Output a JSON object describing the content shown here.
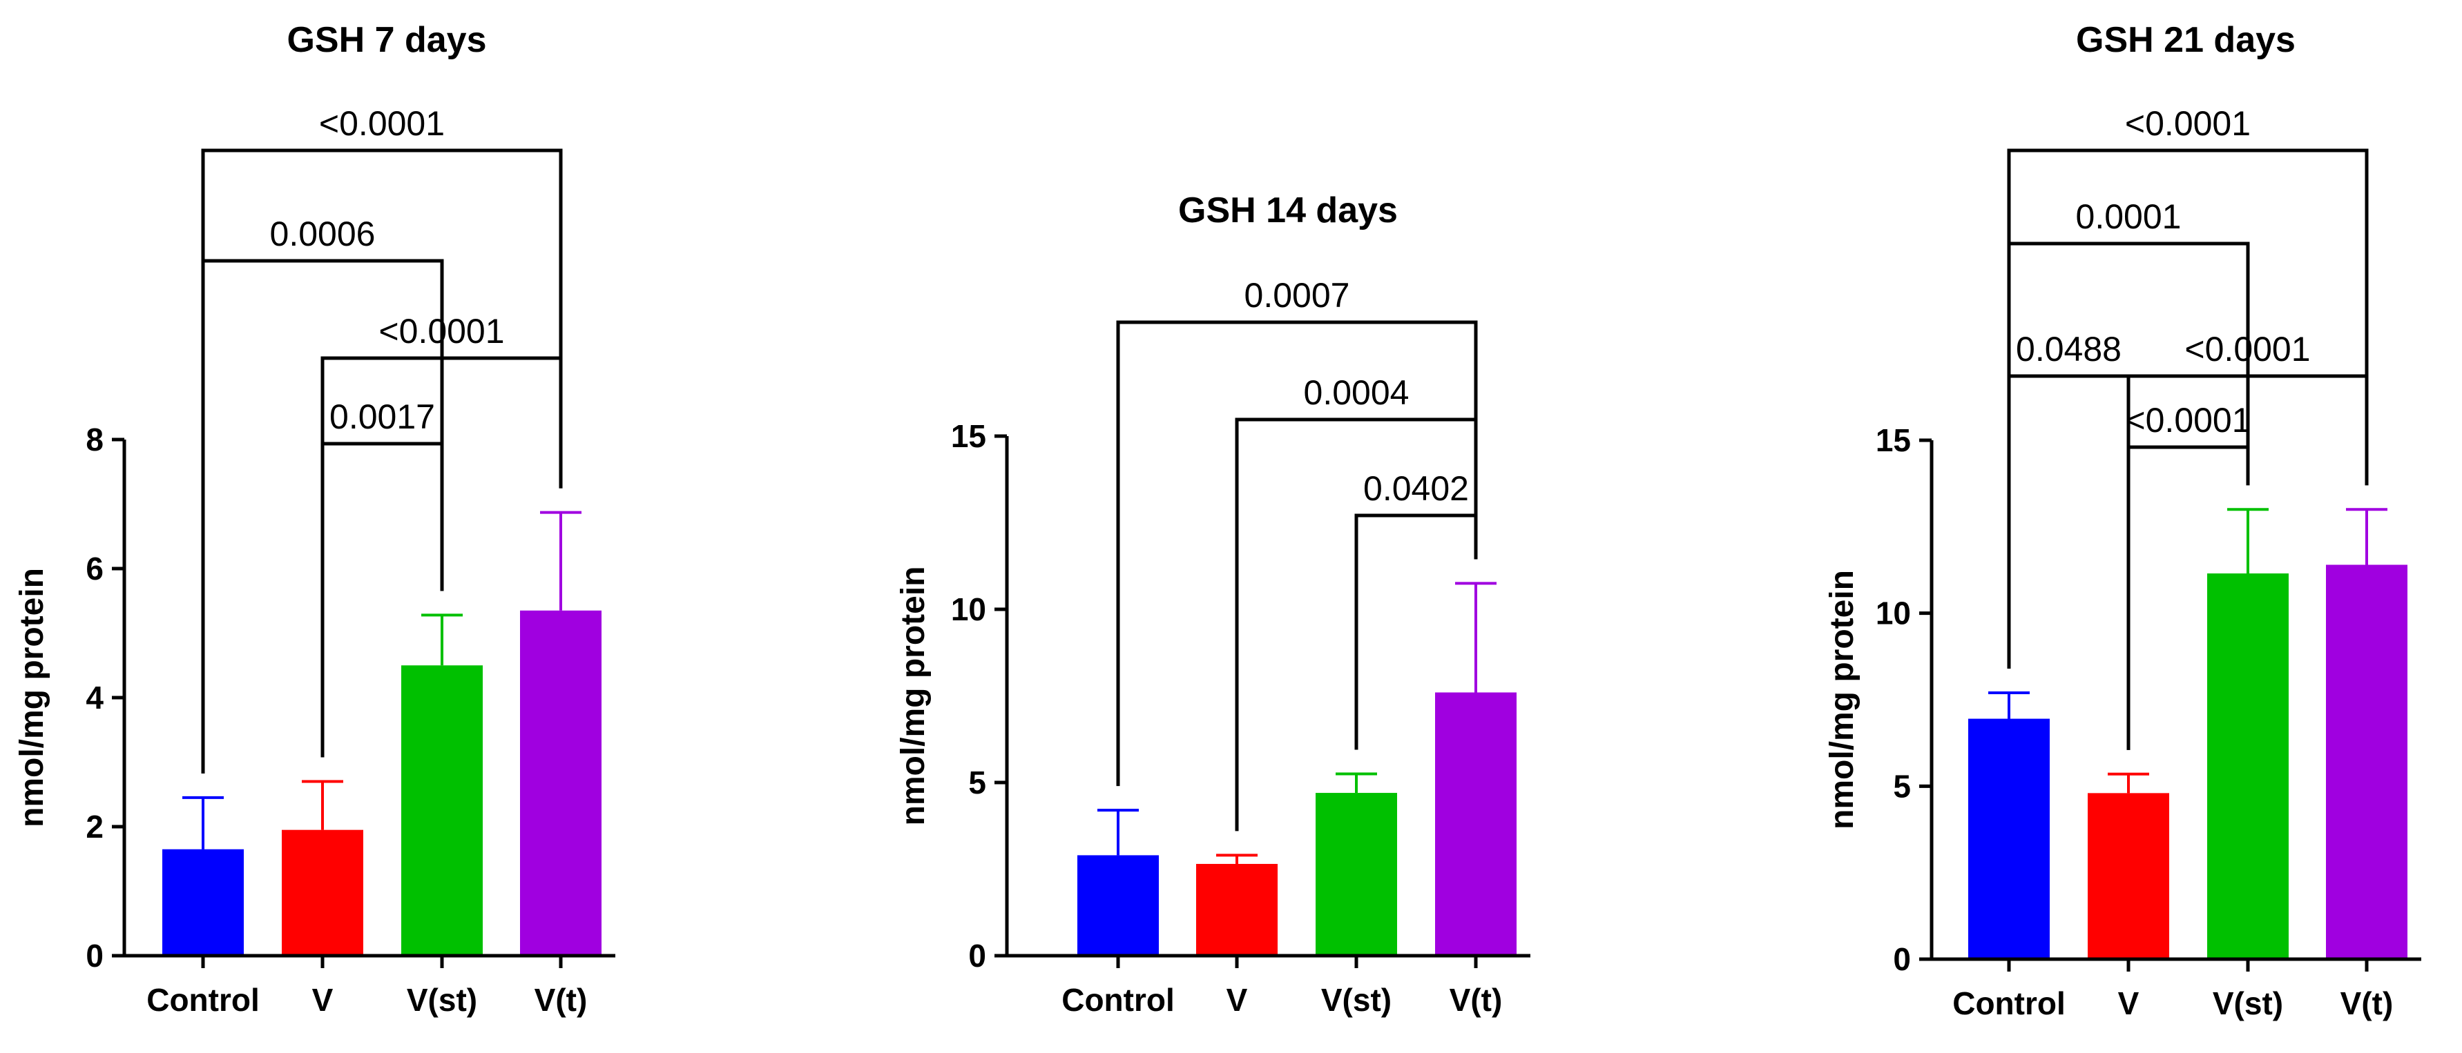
{
  "chart_data": [
    {
      "type": "bar",
      "title": "GSH 7 days",
      "ylabel": "nmol/mg protein",
      "categories": [
        "Control",
        "V",
        "V(st)",
        "V(t)"
      ],
      "values": [
        1.65,
        1.95,
        4.5,
        5.35
      ],
      "errors": [
        0.8,
        0.75,
        0.78,
        1.52
      ],
      "colors": [
        "#0000ff",
        "#ff0000",
        "#00c000",
        "#a000e0"
      ],
      "ylim": [
        0,
        8
      ],
      "yticks": [
        "0",
        "2",
        "4",
        "6",
        "8"
      ],
      "comparisons": [
        {
          "from": 1,
          "to": 2,
          "p": "0.0017"
        },
        {
          "from": 1,
          "to": 3,
          "p": "<0.0001"
        },
        {
          "from": 0,
          "to": 2,
          "p": "0.0006"
        },
        {
          "from": 0,
          "to": 3,
          "p": "<0.0001"
        }
      ]
    },
    {
      "type": "bar",
      "title": "GSH 14 days",
      "ylabel": "nmol/mg protein",
      "categories": [
        "Control",
        "V",
        "V(st)",
        "V(t)"
      ],
      "values": [
        2.9,
        2.65,
        4.7,
        7.6
      ],
      "errors": [
        1.3,
        0.25,
        0.55,
        3.15
      ],
      "colors": [
        "#0000ff",
        "#ff0000",
        "#00c000",
        "#a000e0"
      ],
      "ylim": [
        0,
        15
      ],
      "yticks": [
        "0",
        "5",
        "10",
        "15"
      ],
      "comparisons": [
        {
          "from": 2,
          "to": 3,
          "p": "0.0402"
        },
        {
          "from": 1,
          "to": 3,
          "p": "0.0004"
        },
        {
          "from": 0,
          "to": 3,
          "p": "0.0007"
        }
      ]
    },
    {
      "type": "bar",
      "title": "GSH 21 days",
      "ylabel": "nmol/mg protein",
      "categories": [
        "Control",
        "V",
        "V(st)",
        "V(t)"
      ],
      "values": [
        6.95,
        4.8,
        11.15,
        11.4
      ],
      "errors": [
        0.75,
        0.55,
        1.85,
        1.6
      ],
      "colors": [
        "#0000ff",
        "#ff0000",
        "#00c000",
        "#a000e0"
      ],
      "ylim": [
        0,
        15
      ],
      "yticks": [
        "0",
        "5",
        "10",
        "15"
      ],
      "comparisons": [
        {
          "from": 1,
          "to": 2,
          "p": "<0.0001"
        },
        {
          "from": 0,
          "to": 1,
          "p": "0.0488"
        },
        {
          "from": 1,
          "to": 3,
          "p": "<0.0001"
        },
        {
          "from": 0,
          "to": 2,
          "p": "0.0001"
        },
        {
          "from": 0,
          "to": 3,
          "p": "<0.0001"
        }
      ]
    }
  ]
}
